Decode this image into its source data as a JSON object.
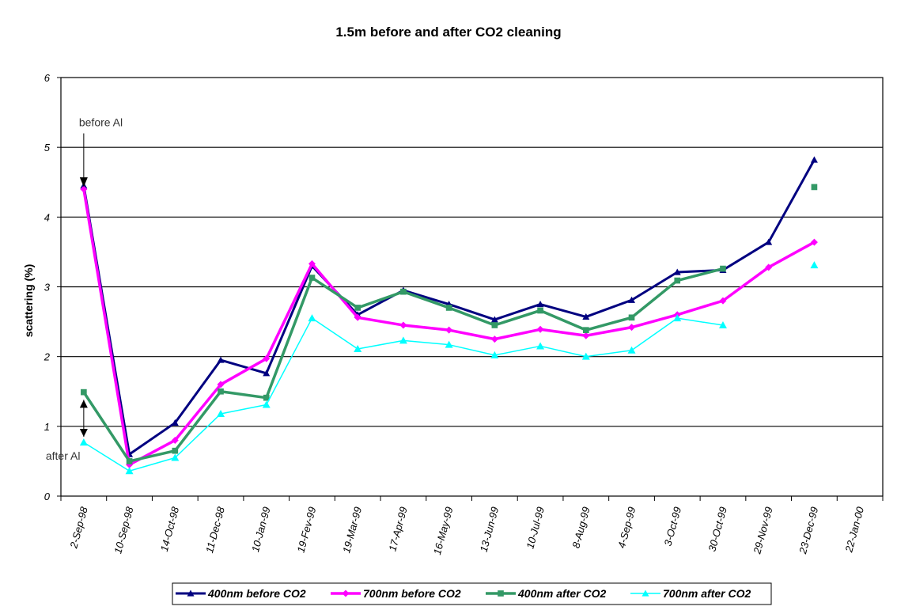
{
  "chart_data": {
    "type": "line",
    "title": "1.5m before and after CO2 cleaning",
    "xlabel": "",
    "ylabel": "scattering (%)",
    "ylim": [
      0,
      6
    ],
    "yticks": [
      0,
      1,
      2,
      3,
      4,
      5,
      6
    ],
    "grid": true,
    "legend_position": "bottom",
    "categories": [
      "2-Sep-98",
      "10-Sep-98",
      "14-Oct-98",
      "11-Dec-98",
      "10-Jan-99",
      "19-Fev-99",
      "19-Mar-99",
      "17-Apr-99",
      "16-May-99",
      "13-Jun-99",
      "10-Jul-99",
      "8-Aug-99",
      "4-Sep-99",
      "3-Oct-99",
      "30-Oct-99",
      "29-Nov-99",
      "23-Dec-99",
      "22-Jan-00"
    ],
    "series": [
      {
        "name": "400nm before CO2",
        "color": "#000080",
        "marker": "triangle",
        "values": [
          4.45,
          0.6,
          1.05,
          1.95,
          1.76,
          3.3,
          2.6,
          2.95,
          2.75,
          2.53,
          2.75,
          2.57,
          2.81,
          3.21,
          3.24,
          3.64,
          4.82,
          null
        ]
      },
      {
        "name": "700nm before CO2",
        "color": "#ff00ff",
        "marker": "diamond",
        "values": [
          4.4,
          0.45,
          0.8,
          1.6,
          1.97,
          3.33,
          2.56,
          2.45,
          2.38,
          2.25,
          2.39,
          2.3,
          2.42,
          2.6,
          2.8,
          3.28,
          3.64,
          null
        ]
      },
      {
        "name": "400nm after CO2",
        "color": "#339966",
        "marker": "square",
        "values": [
          1.49,
          0.5,
          0.65,
          1.5,
          1.41,
          3.13,
          2.7,
          2.93,
          2.7,
          2.45,
          2.66,
          2.38,
          2.56,
          3.09,
          3.26,
          null,
          4.43,
          null
        ]
      },
      {
        "name": "700nm after CO2",
        "color": "#00ffff",
        "marker": "triangle",
        "values": [
          0.77,
          0.36,
          0.55,
          1.18,
          1.31,
          2.55,
          2.11,
          2.23,
          2.17,
          2.02,
          2.15,
          2.0,
          2.09,
          2.55,
          2.45,
          null,
          3.31,
          null
        ]
      }
    ],
    "annotations": [
      {
        "text": "before Al"
      },
      {
        "text": "after Al"
      }
    ]
  }
}
